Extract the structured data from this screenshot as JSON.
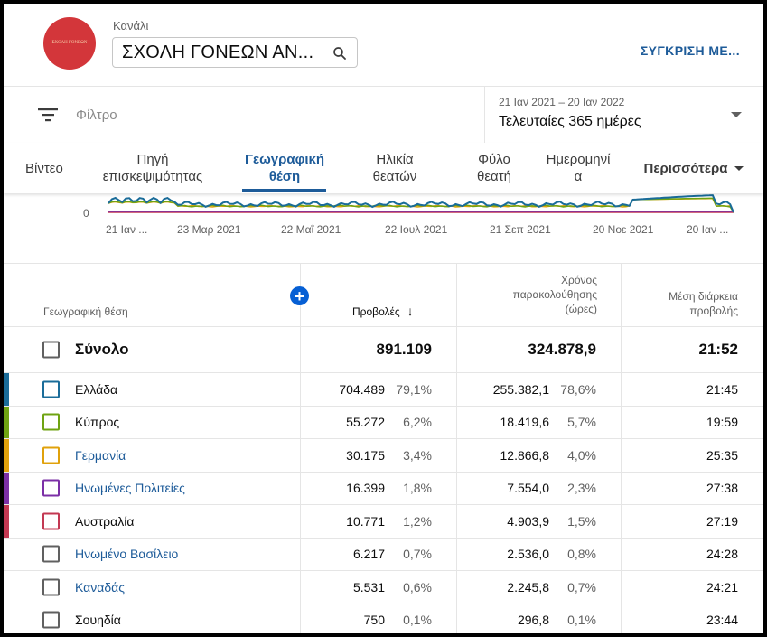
{
  "header": {
    "channel_label": "Κανάλι",
    "channel_name": "ΣΧΟΛΗ ΓΟΝΕΩΝ ΑΝ...",
    "avatar_text": "ΣΧΟΛΗ ΓΟΝΕΩΝ",
    "compare_label": "ΣΥΓΚΡΙΣΗ ΜΕ..."
  },
  "filter": {
    "label": "Φίλτρο",
    "date_range": "21 Ιαν 2021 – 20 Ιαν 2022",
    "date_label": "Τελευταίες 365 ημέρες"
  },
  "tabs": [
    {
      "label": "Βίντεο"
    },
    {
      "label": "Πηγή επισκεψιμότητας"
    },
    {
      "label": "Γεωγραφική θέση"
    },
    {
      "label": "Ηλικία θεατών"
    },
    {
      "label": "Φύλο θεατή"
    },
    {
      "label": "Ημερομηνία"
    },
    {
      "label": "Περισσότερα"
    }
  ],
  "chart_data": {
    "type": "line",
    "y_tick": "0",
    "x_ticks": [
      "21 Ιαν ...",
      "23 Μαρ 2021",
      "22 Μαΐ 2021",
      "22 Ιουλ 2021",
      "21 Σεπ 2021",
      "20 Νοε 2021",
      "20 Ιαν ..."
    ],
    "colors": {
      "greece": "#1a6c99",
      "cyprus": "#6fa312",
      "germany": "#e0a10b",
      "usa": "#7b2fa6",
      "australia": "#c33852"
    }
  },
  "table": {
    "headers": {
      "location": "Γεωγραφική θέση",
      "views": "Προβολές",
      "sort_arrow": "↓",
      "watch_time_1": "Χρόνος",
      "watch_time_2": "παρακολούθησης",
      "watch_time_3": "(ώρες)",
      "avg_1": "Μέση διάρκεια",
      "avg_2": "προβολής",
      "add_column": "+"
    },
    "total": {
      "name": "Σύνολο",
      "views": "891.109",
      "watch": "324.878,9",
      "avg": "21:52"
    },
    "rows": [
      {
        "name": "Ελλάδα",
        "views": "704.489",
        "views_pct": "79,1%",
        "watch": "255.382,1",
        "watch_pct": "78,6%",
        "avg": "21:45",
        "color": "#1a6c99",
        "link": false
      },
      {
        "name": "Κύπρος",
        "views": "55.272",
        "views_pct": "6,2%",
        "watch": "18.419,6",
        "watch_pct": "5,7%",
        "avg": "19:59",
        "color": "#6fa312",
        "link": false
      },
      {
        "name": "Γερμανία",
        "views": "30.175",
        "views_pct": "3,4%",
        "watch": "12.866,8",
        "watch_pct": "4,0%",
        "avg": "25:35",
        "color": "#e0a10b",
        "link": true
      },
      {
        "name": "Ηνωμένες Πολιτείες",
        "views": "16.399",
        "views_pct": "1,8%",
        "watch": "7.554,0",
        "watch_pct": "2,3%",
        "avg": "27:38",
        "color": "#7b2fa6",
        "link": true
      },
      {
        "name": "Αυστραλία",
        "views": "10.771",
        "views_pct": "1,2%",
        "watch": "4.903,9",
        "watch_pct": "1,5%",
        "avg": "27:19",
        "color": "#c33852",
        "link": false
      },
      {
        "name": "Ηνωμένο Βασίλειο",
        "views": "6.217",
        "views_pct": "0,7%",
        "watch": "2.536,0",
        "watch_pct": "0,8%",
        "avg": "24:28",
        "color": "",
        "link": true
      },
      {
        "name": "Καναδάς",
        "views": "5.531",
        "views_pct": "0,6%",
        "watch": "2.245,8",
        "watch_pct": "0,7%",
        "avg": "24:21",
        "color": "",
        "link": true
      },
      {
        "name": "Σουηδία",
        "views": "750",
        "views_pct": "0,1%",
        "watch": "296,8",
        "watch_pct": "0,1%",
        "avg": "23:44",
        "color": "",
        "link": false
      }
    ]
  }
}
